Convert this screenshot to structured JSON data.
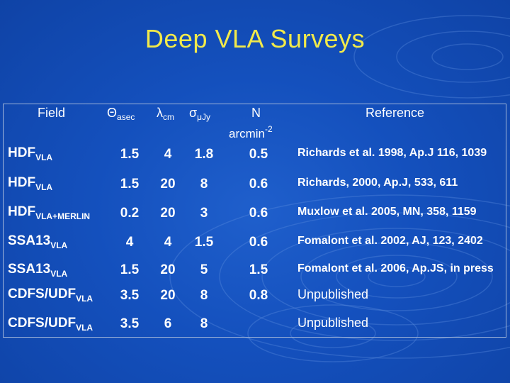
{
  "title": "Deep VLA Surveys",
  "headers": {
    "field": "Field",
    "theta": "Θ",
    "theta_sub": "asec",
    "lambda": "λ",
    "lambda_sub": "cm",
    "sigma": "σ",
    "sigma_sub": "μJy",
    "n": "N",
    "n_unit": "arcmin",
    "n_unit_exp": "-2",
    "reference": "Reference"
  },
  "rows": [
    {
      "field": "HDF",
      "field_sub": "VLA",
      "theta": "1.5",
      "lambda": "4",
      "sigma": "1.8",
      "n": "0.5",
      "reference": "Richards et al. 1998, Ap.J 116, 1039"
    },
    {
      "field": "HDF",
      "field_sub": "VLA",
      "theta": "1.5",
      "lambda": "20",
      "sigma": "8",
      "n": "0.6",
      "reference": "Richards, 2000, Ap.J, 533, 611"
    },
    {
      "field": "HDF",
      "field_sub": "VLA+MERLIN",
      "theta": "0.2",
      "lambda": "20",
      "sigma": "3",
      "n": "0.6",
      "reference": "Muxlow et al. 2005, MN, 358, 1159"
    },
    {
      "field": "SSA13",
      "field_sub": "VLA",
      "theta": "4",
      "lambda": "4",
      "sigma": "1.5",
      "n": "0.6",
      "reference": "Fomalont et al. 2002, AJ, 123, 2402"
    },
    {
      "field": "SSA13",
      "field_sub": "VLA",
      "theta": "1.5",
      "lambda": "20",
      "sigma": "5",
      "n": "1.5",
      "reference": "Fomalont et al. 2006, Ap.JS, in press"
    },
    {
      "field": "CDFS/UDF",
      "field_sub": "VLA",
      "theta": "3.5",
      "lambda": "20",
      "sigma": "8",
      "n": "0.8",
      "reference": "Unpublished"
    },
    {
      "field": "CDFS/UDF",
      "field_sub": "VLA",
      "theta": "3.5",
      "lambda": "6",
      "sigma": "8",
      "n": "",
      "reference": "Unpublished"
    }
  ],
  "colors": {
    "background": "#1450bd",
    "title": "#f2ea4a",
    "text": "#ffffff",
    "border": "#9fb4d8"
  }
}
